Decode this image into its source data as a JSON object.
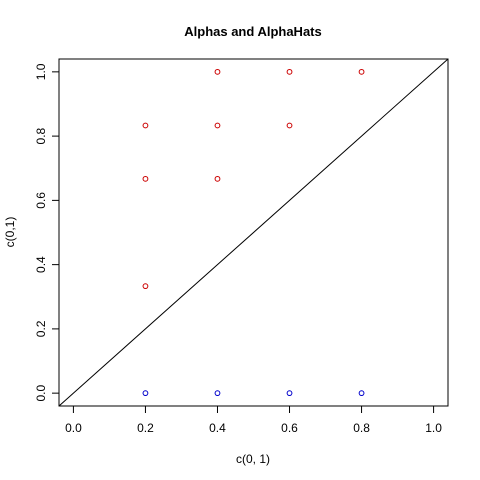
{
  "chart_data": {
    "type": "scatter",
    "title": "Alphas and AlphaHats",
    "xlabel": "c(0, 1)",
    "ylabel": "c(0,1)",
    "xlim": [
      -0.04,
      1.04
    ],
    "ylim": [
      -0.04,
      1.04
    ],
    "x_ticks": [
      0.0,
      0.2,
      0.4,
      0.6,
      0.8,
      1.0
    ],
    "x_tick_labels": [
      "0.0",
      "0.2",
      "0.4",
      "0.6",
      "0.8",
      "1.0"
    ],
    "y_ticks": [
      0.0,
      0.2,
      0.4,
      0.6,
      0.8,
      1.0
    ],
    "y_tick_labels": [
      "0.0",
      "0.2",
      "0.4",
      "0.6",
      "0.8",
      "1.0"
    ],
    "grid": false,
    "reference_line": {
      "type": "abline",
      "intercept": 0,
      "slope": 1,
      "color": "#000000"
    },
    "series": [
      {
        "color": "#cc0000",
        "marker": "open-circle",
        "points": [
          [
            0.2,
            0.333
          ],
          [
            0.2,
            0.667
          ],
          [
            0.2,
            0.833
          ],
          [
            0.4,
            0.667
          ],
          [
            0.4,
            0.833
          ],
          [
            0.4,
            1.0
          ],
          [
            0.6,
            0.833
          ],
          [
            0.6,
            1.0
          ],
          [
            0.8,
            1.0
          ]
        ]
      },
      {
        "color": "#0000cc",
        "marker": "open-circle",
        "points": [
          [
            0.2,
            0.0
          ],
          [
            0.4,
            0.0
          ],
          [
            0.6,
            0.0
          ],
          [
            0.8,
            0.0
          ]
        ]
      }
    ]
  }
}
